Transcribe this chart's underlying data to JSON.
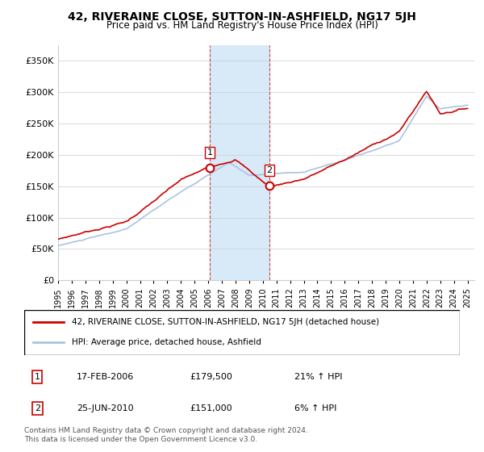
{
  "title": "42, RIVERAINE CLOSE, SUTTON-IN-ASHFIELD, NG17 5JH",
  "subtitle": "Price paid vs. HM Land Registry's House Price Index (HPI)",
  "ylim": [
    0,
    375000
  ],
  "yticks": [
    0,
    50000,
    100000,
    150000,
    200000,
    250000,
    300000,
    350000
  ],
  "ytick_labels": [
    "£0",
    "£50K",
    "£100K",
    "£150K",
    "£200K",
    "£250K",
    "£300K",
    "£350K"
  ],
  "sale1_date": 2006.12,
  "sale1_price": 179500,
  "sale1_label": "1",
  "sale2_date": 2010.48,
  "sale2_price": 151000,
  "sale2_label": "2",
  "shade_start": 2006.12,
  "shade_end": 2010.48,
  "hpi_color": "#aac4e0",
  "price_color": "#cc0000",
  "shade_color": "#d8eaf8",
  "marker_color": "#cc0000",
  "legend_label_price": "42, RIVERAINE CLOSE, SUTTON-IN-ASHFIELD, NG17 5JH (detached house)",
  "legend_label_hpi": "HPI: Average price, detached house, Ashfield",
  "table_row1": [
    "1",
    "17-FEB-2006",
    "£179,500",
    "21% ↑ HPI"
  ],
  "table_row2": [
    "2",
    "25-JUN-2010",
    "£151,000",
    "6% ↑ HPI"
  ],
  "footnote": "Contains HM Land Registry data © Crown copyright and database right 2024.\nThis data is licensed under the Open Government Licence v3.0.",
  "xmin": 1995.0,
  "xmax": 2025.5,
  "background_color": "#ffffff",
  "grid_color": "#cccccc"
}
